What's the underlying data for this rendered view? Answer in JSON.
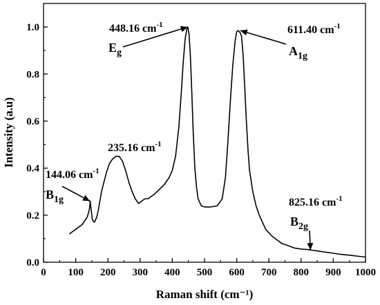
{
  "chart_data": {
    "type": "line",
    "title": "",
    "xlabel": "Raman shift (cm⁻¹)",
    "ylabel": "Intensity (a.u)",
    "xlim": [
      0,
      1000
    ],
    "ylim": [
      0,
      1.1
    ],
    "xticks": [
      "0",
      "100",
      "200",
      "300",
      "400",
      "500",
      "600",
      "700",
      "800",
      "900",
      "1000"
    ],
    "yticks": [
      "0.0",
      "0.2",
      "0.4",
      "0.6",
      "0.8",
      "1.0"
    ],
    "grid": false,
    "legend": "none",
    "color": "#000000",
    "series": [
      {
        "x": [
          80,
          100,
          120,
          135,
          140,
          143,
          145,
          148,
          152,
          158,
          165,
          170,
          180,
          195,
          205,
          215,
          225,
          235,
          245,
          255,
          265,
          275,
          285,
          295,
          305,
          315,
          325,
          335,
          345,
          360,
          375,
          390,
          400,
          410,
          420,
          428,
          434,
          440,
          445,
          448,
          452,
          456,
          460,
          465,
          470,
          475,
          480,
          490,
          500,
          510,
          520,
          540,
          555,
          565,
          572,
          580,
          588,
          595,
          600,
          605,
          608,
          611,
          615,
          620,
          625,
          630,
          635,
          640,
          650,
          660,
          670,
          680,
          690,
          700,
          710,
          720,
          730,
          740,
          750,
          760,
          770,
          780,
          790,
          800,
          810,
          820,
          830,
          840,
          850,
          860,
          870,
          880,
          900,
          920,
          950,
          980,
          1000
        ],
        "y": [
          0.12,
          0.14,
          0.16,
          0.19,
          0.21,
          0.23,
          0.26,
          0.22,
          0.18,
          0.17,
          0.19,
          0.22,
          0.3,
          0.38,
          0.42,
          0.44,
          0.45,
          0.45,
          0.43,
          0.39,
          0.34,
          0.3,
          0.27,
          0.25,
          0.26,
          0.27,
          0.27,
          0.28,
          0.29,
          0.31,
          0.33,
          0.36,
          0.39,
          0.45,
          0.57,
          0.72,
          0.85,
          0.95,
          0.99,
          1.0,
          0.97,
          0.88,
          0.74,
          0.55,
          0.4,
          0.32,
          0.27,
          0.24,
          0.235,
          0.235,
          0.235,
          0.24,
          0.27,
          0.36,
          0.5,
          0.68,
          0.84,
          0.94,
          0.98,
          0.985,
          0.98,
          0.975,
          0.96,
          0.88,
          0.74,
          0.6,
          0.48,
          0.39,
          0.3,
          0.24,
          0.2,
          0.17,
          0.14,
          0.125,
          0.11,
          0.1,
          0.09,
          0.08,
          0.075,
          0.07,
          0.065,
          0.06,
          0.058,
          0.056,
          0.055,
          0.054,
          0.052,
          0.05,
          0.048,
          0.046,
          0.044,
          0.042,
          0.038,
          0.034,
          0.03,
          0.025,
          0.022
        ]
      }
    ],
    "annotations": [
      {
        "id": "eg",
        "value": "448.16 cm",
        "exponent": "-1",
        "symbol": "E",
        "subscript": "g",
        "arrow_to": [
          448,
          1.0
        ]
      },
      {
        "id": "a1g",
        "value": "611.40 cm",
        "exponent": "-1",
        "symbol": "A",
        "subscript": "1g",
        "arrow_to": [
          611,
          0.985
        ]
      },
      {
        "id": "p235",
        "value": "235.16 cm",
        "exponent": "-1"
      },
      {
        "id": "b1g",
        "value": "144.06 cm",
        "exponent": "-1",
        "symbol": "B",
        "subscript": "1g",
        "arrow_to": [
          144,
          0.26
        ]
      },
      {
        "id": "b2g",
        "value": "825.16 cm",
        "exponent": "-1",
        "symbol": "B",
        "subscript": "2g",
        "arrow_to": [
          829,
          0.052
        ]
      }
    ]
  }
}
